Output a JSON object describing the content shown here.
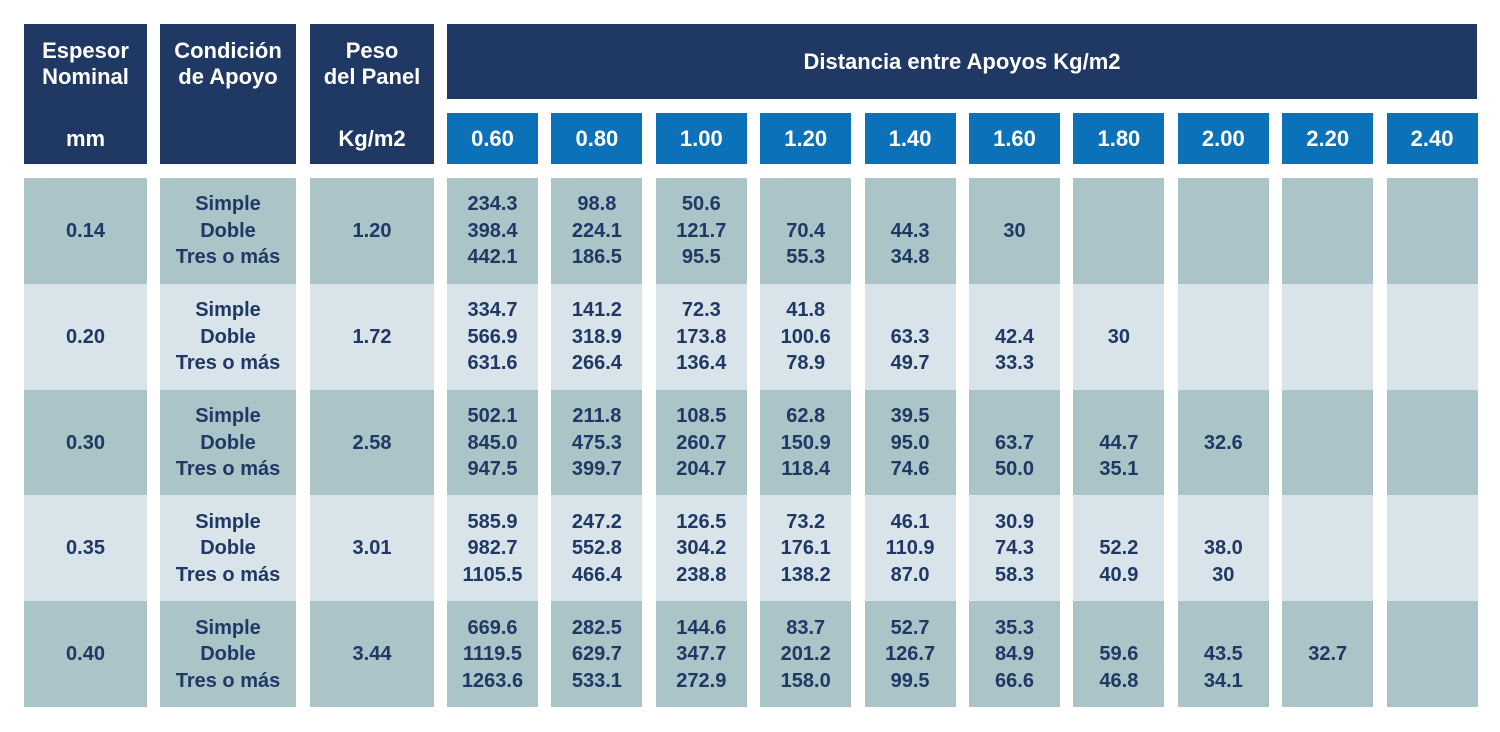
{
  "header": {
    "espesor": [
      "Espesor",
      "Nominal"
    ],
    "espesor_unit": "mm",
    "condicion": [
      "Condición",
      "de Apoyo"
    ],
    "peso": [
      "Peso",
      "del Panel"
    ],
    "peso_unit": "Kg/m2",
    "distancia": "Distancia entre Apoyos Kg/m2",
    "spans": [
      "0.60",
      "0.80",
      "1.00",
      "1.20",
      "1.40",
      "1.60",
      "1.80",
      "2.00",
      "2.20",
      "2.40"
    ]
  },
  "rows": [
    {
      "espesor": "0.14",
      "condiciones": [
        "Simple",
        "Doble",
        "Tres o más"
      ],
      "peso": "1.20",
      "values": [
        [
          "234.3",
          "398.4",
          "442.1"
        ],
        [
          "98.8",
          "224.1",
          "186.5"
        ],
        [
          "50.6",
          "121.7",
          "95.5"
        ],
        [
          null,
          "70.4",
          "55.3"
        ],
        [
          null,
          "44.3",
          "34.8"
        ],
        [
          null,
          "30",
          null
        ],
        [
          null,
          null,
          null
        ],
        [
          null,
          null,
          null
        ],
        [
          null,
          null,
          null
        ],
        [
          null,
          null,
          null
        ]
      ]
    },
    {
      "espesor": "0.20",
      "condiciones": [
        "Simple",
        "Doble",
        "Tres o más"
      ],
      "peso": "1.72",
      "values": [
        [
          "334.7",
          "566.9",
          "631.6"
        ],
        [
          "141.2",
          "318.9",
          "266.4"
        ],
        [
          "72.3",
          "173.8",
          "136.4"
        ],
        [
          "41.8",
          "100.6",
          "78.9"
        ],
        [
          null,
          "63.3",
          "49.7"
        ],
        [
          null,
          "42.4",
          "33.3"
        ],
        [
          null,
          "30",
          null
        ],
        [
          null,
          null,
          null
        ],
        [
          null,
          null,
          null
        ],
        [
          null,
          null,
          null
        ]
      ]
    },
    {
      "espesor": "0.30",
      "condiciones": [
        "Simple",
        "Doble",
        "Tres o más"
      ],
      "peso": "2.58",
      "values": [
        [
          "502.1",
          "845.0",
          "947.5"
        ],
        [
          "211.8",
          "475.3",
          "399.7"
        ],
        [
          "108.5",
          "260.7",
          "204.7"
        ],
        [
          "62.8",
          "150.9",
          "118.4"
        ],
        [
          "39.5",
          "95.0",
          "74.6"
        ],
        [
          null,
          "63.7",
          "50.0"
        ],
        [
          null,
          "44.7",
          "35.1"
        ],
        [
          null,
          "32.6",
          null
        ],
        [
          null,
          null,
          null
        ],
        [
          null,
          null,
          null
        ]
      ]
    },
    {
      "espesor": "0.35",
      "condiciones": [
        "Simple",
        "Doble",
        "Tres o más"
      ],
      "peso": "3.01",
      "values": [
        [
          "585.9",
          "982.7",
          "1105.5"
        ],
        [
          "247.2",
          "552.8",
          "466.4"
        ],
        [
          "126.5",
          "304.2",
          "238.8"
        ],
        [
          "73.2",
          "176.1",
          "138.2"
        ],
        [
          "46.1",
          "110.9",
          "87.0"
        ],
        [
          "30.9",
          "74.3",
          "58.3"
        ],
        [
          null,
          "52.2",
          "40.9"
        ],
        [
          null,
          "38.0",
          "30"
        ],
        [
          null,
          null,
          null
        ],
        [
          null,
          null,
          null
        ]
      ]
    },
    {
      "espesor": "0.40",
      "condiciones": [
        "Simple",
        "Doble",
        "Tres o más"
      ],
      "peso": "3.44",
      "values": [
        [
          "669.6",
          "1119.5",
          "1263.6"
        ],
        [
          "282.5",
          "629.7",
          "533.1"
        ],
        [
          "144.6",
          "347.7",
          "272.9"
        ],
        [
          "83.7",
          "201.2",
          "158.0"
        ],
        [
          "52.7",
          "126.7",
          "99.5"
        ],
        [
          "35.3",
          "84.9",
          "66.6"
        ],
        [
          null,
          "59.6",
          "46.8"
        ],
        [
          null,
          "43.5",
          "34.1"
        ],
        [
          null,
          "32.7",
          null
        ],
        [
          null,
          null,
          null
        ]
      ]
    }
  ]
}
